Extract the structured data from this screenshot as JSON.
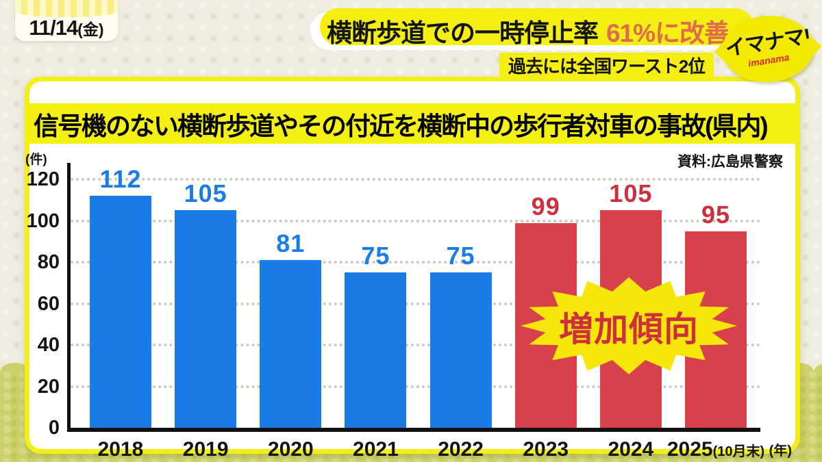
{
  "broadcast": {
    "date_main": "11/14",
    "date_week": "(金)",
    "headline_black": "横断歩道での一時停止率",
    "headline_orange": "61%に改善",
    "sub_badge": "過去には全国ワースト2位",
    "logo_main": "イマナマ!",
    "logo_sub": "imanama"
  },
  "panel": {
    "title": "信号機のない横断歩道やその付近を横断中の歩行者対車の事故(県内)",
    "source": "資料:広島県警察"
  },
  "chart_data": {
    "type": "bar",
    "title": "信号機のない横断歩道やその付近を横断中の歩行者対車の事故(県内)",
    "ylabel": "(件)",
    "x_axis_unit": "(年)",
    "categories": [
      "2018",
      "2019",
      "2020",
      "2021",
      "2022",
      "2023",
      "2024",
      "2025"
    ],
    "last_category_note": "(10月末)",
    "values": [
      112,
      105,
      81,
      75,
      75,
      99,
      105,
      95
    ],
    "bar_colors": [
      "blue",
      "blue",
      "blue",
      "blue",
      "blue",
      "red",
      "red",
      "red"
    ],
    "ylim": [
      0,
      120
    ],
    "ytick_step": 20,
    "grid": "dotted-horizontal",
    "legend": "none",
    "annotation": "増加傾向",
    "source": "資料:広島県警察"
  },
  "colors": {
    "blue_bar": "#1a7ce6",
    "blue_label": "#1a7ce6",
    "red_bar": "#d8404b",
    "red_label": "#ce2f3c",
    "accent_yellow": "#f4ef10",
    "headline_orange": "#e06a4e",
    "logo_red": "#e02a2a",
    "burst_yellow": "#f6e60a"
  }
}
